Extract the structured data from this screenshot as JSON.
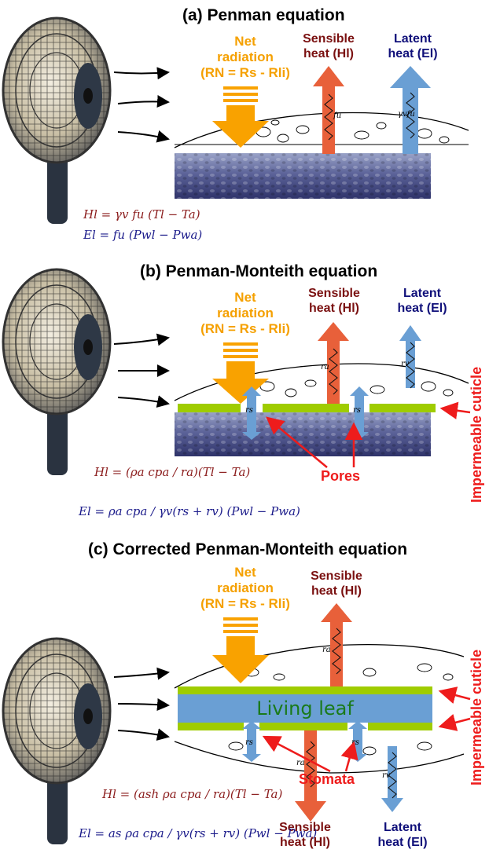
{
  "panel_a": {
    "title": "(a) Penman equation",
    "net_radiation": [
      "Net",
      "radiation",
      "(RN = Rs - Rli)"
    ],
    "sensible": [
      "Sensible",
      "heat (Hl)"
    ],
    "latent": [
      "Latent",
      "heat (El)"
    ],
    "res_sensible": "fu",
    "res_latent": "γvfu",
    "eq_h": "Hl = γv fu (Tl − Ta)",
    "eq_e": "El = fu (Pwl − Pwa)"
  },
  "panel_b": {
    "title": "(b) Penman-Monteith equation",
    "net_radiation": [
      "Net",
      "radiation",
      "(RN = Rs - Rli)"
    ],
    "sensible": [
      "Sensible",
      "heat (Hl)"
    ],
    "latent": [
      "Latent",
      "heat (El)"
    ],
    "res_sensible": "ra",
    "res_latent": "rv",
    "res_pore": "rs",
    "pores": "Pores",
    "cuticle": "Impermeable cuticle",
    "eq_h": "Hl = (ρa cpa / ra)(Tl − Ta)",
    "eq_e": "El = ρa cpa / γv(rs + rv) (Pwl − Pwa)"
  },
  "panel_c": {
    "title": "(c) Corrected Penman-Monteith equation",
    "net_radiation": [
      "Net",
      "radiation",
      "(RN = Rs - Rli)"
    ],
    "sensible_top": [
      "Sensible",
      "heat (Hl)"
    ],
    "sensible_bottom": [
      "Sensible",
      "heat (Hl)"
    ],
    "latent": [
      "Latent",
      "heat (El)"
    ],
    "leaf": "Living leaf",
    "stomata": "Stomata",
    "cuticle": "Impermeable cuticle",
    "res_sensible": "ra",
    "res_latent": "rv",
    "res_pore": "rs",
    "eq_h": "Hl = (ash ρa cpa / ra)(Tl − Ta)",
    "eq_e": "El = as ρa cpa / γv(rs + rv) (Pwl − Pwa)"
  },
  "colors": {
    "net_arrow": "#f9a200",
    "sensible_arrow": "#e8603a",
    "latent_arrow": "#6a9fd4",
    "cuticle": "#9fcc00",
    "leaf": "#6a9fd4",
    "substrate": "#4a4f86",
    "fan": "#2a3340"
  },
  "icons": [
    "fan-icon",
    "air-flow-arrow",
    "net-radiation-arrow",
    "sensible-heat-arrow",
    "latent-heat-arrow"
  ]
}
